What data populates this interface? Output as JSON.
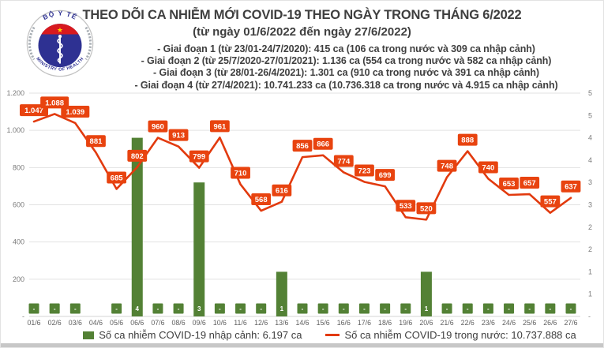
{
  "header": {
    "title": "THEO DÕI CA NHIỄM MỚI COVID-19 THEO NGÀY TRONG THÁNG 6/2022",
    "subtitle": "(từ ngày 01/6/2022 đến ngày 27/6/2022)",
    "phases": [
      "- Giai đoạn 1 (từ 23/01-24/7/2020): 415 ca (106 ca trong nước và 309 ca nhập cảnh)",
      "- Giai đoạn 2 (từ 25/7/2020-27/01/2021): 1.136 ca (554 ca trong nước và 582 ca nhập cảnh)",
      "- Giai đoạn 3 (từ 28/01-26/4/2021): 1.301 ca (910 ca trong nước và 391 ca nhập cảnh)",
      "- Giai đoạn 4 (từ 27/4/2021): 10.741.233 ca (10.736.318 ca trong nước và 4.915 ca nhập cảnh)"
    ]
  },
  "logo": {
    "top_text": "BỘ Y TẾ",
    "bottom_text": "MINISTRY OF HEALTH"
  },
  "chart_data": {
    "type": "line+bar",
    "title": "THEO DÕI CA NHIỄM MỚI COVID-19 THEO NGÀY TRONG THÁNG 6/2022",
    "categories": [
      "01/6",
      "02/6",
      "03/6",
      "04/6",
      "05/6",
      "06/6",
      "07/6",
      "08/6",
      "09/6",
      "10/6",
      "11/6",
      "12/6",
      "13/6",
      "14/6",
      "15/6",
      "16/6",
      "17/6",
      "18/6",
      "19/6",
      "20/6",
      "21/6",
      "22/6",
      "23/6",
      "24/6",
      "25/6",
      "26/6",
      "27/6"
    ],
    "series": [
      {
        "name": "Số ca nhiễm COVID-19 trong nước",
        "type": "line",
        "axis": "left",
        "color": "#E23A0E",
        "label_color": "#E8430F",
        "values": [
          1047,
          1088,
          1039,
          881,
          685,
          802,
          960,
          913,
          799,
          961,
          710,
          568,
          616,
          856,
          866,
          774,
          723,
          699,
          533,
          520,
          748,
          888,
          740,
          653,
          657,
          557,
          637
        ],
        "labels": [
          "1.047",
          "1.088",
          "1.039",
          "881",
          "685",
          "802",
          "960",
          "913",
          "799",
          "961",
          "710",
          "568",
          "616",
          "856",
          "866",
          "774",
          "723",
          "699",
          "533",
          "520",
          "748",
          "888",
          "740",
          "653",
          "657",
          "557",
          "637"
        ]
      },
      {
        "name": "Số ca nhiễm COVID-19 nhập cảnh",
        "type": "bar",
        "axis": "right",
        "color": "#538135",
        "values": [
          0,
          0,
          0,
          null,
          0,
          4,
          0,
          0,
          3,
          0,
          0,
          0,
          1,
          0,
          0,
          0,
          0,
          0,
          0,
          1,
          0,
          0,
          0,
          0,
          0,
          0,
          0
        ],
        "labels": [
          "-",
          "-",
          "-",
          "",
          "-",
          "4",
          "-",
          "-",
          "3",
          "-",
          "-",
          "-",
          "1",
          "-",
          "-",
          "-",
          "-",
          "-",
          "-",
          "1",
          "-",
          "-",
          "-",
          "-",
          "-",
          "-",
          "-"
        ]
      }
    ],
    "left_axis": {
      "min": 0,
      "max": 1200,
      "step": 200,
      "ticks": [
        "-",
        "200",
        "400",
        "600",
        "800",
        "1.000",
        "1.200"
      ]
    },
    "right_axis": {
      "min": 0,
      "max": 5,
      "step": 0.5,
      "ticks": [
        "-",
        "1",
        "1",
        "2",
        "2",
        "3",
        "3",
        "4",
        "4",
        "5",
        "5"
      ]
    },
    "grid": "horizontal",
    "legend_position": "bottom"
  },
  "legend": [
    {
      "swatch": "bar",
      "color": "#538135",
      "label": "Số ca nhiễm COVID-19 nhập cảnh: 6.197 ca"
    },
    {
      "swatch": "line",
      "color": "#E23A0E",
      "label": "Số ca nhiễm COVID-19 trong nước: 10.737.888 ca"
    }
  ],
  "colors": {
    "red": "#E8430F",
    "green": "#538135",
    "grid": "#E2E2E2",
    "axis_text": "#7a7a7a",
    "date_text": "#5f5f5f",
    "header_text": "#3F3F3F"
  }
}
